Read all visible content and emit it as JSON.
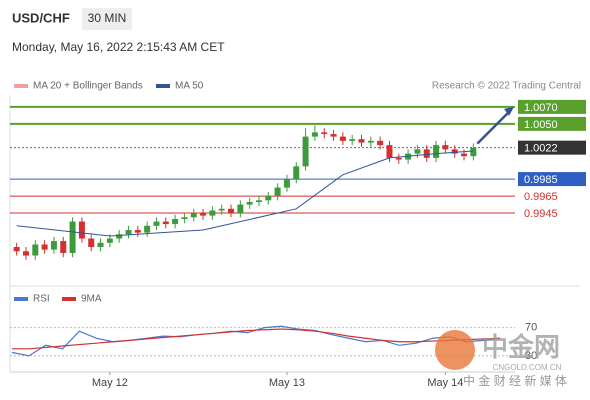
{
  "chart_data": {
    "type": "candlestick",
    "title": "USD/CHF",
    "timeframe": "30 MIN",
    "subtitle": "Monday, May 16, 2022 2:15:43 AM CET",
    "source": "Research © 2022 Trading Central",
    "legend": [
      "MA 20 + Bollinger Bands",
      "MA 50"
    ],
    "up_color": "#3d9b3d",
    "down_color": "#d3302f",
    "ylim": [
      0.9865,
      1.0084
    ],
    "open": [
      0.9905,
      0.99,
      0.9895,
      0.9908,
      0.9902,
      0.9912,
      0.9898,
      0.9935,
      0.9915,
      0.9905,
      0.991,
      0.9915,
      0.992,
      0.9925,
      0.9922,
      0.993,
      0.9935,
      0.9932,
      0.9938,
      0.994,
      0.9945,
      0.9942,
      0.9948,
      0.995,
      0.9945,
      0.9955,
      0.9958,
      0.996,
      0.9965,
      0.9975,
      0.9985,
      1.0,
      1.0035,
      1.004,
      1.0038,
      1.0035,
      1.003,
      1.0032,
      1.0028,
      1.003,
      1.0025,
      1.001,
      1.0008,
      1.0015,
      1.002,
      1.001,
      1.0025,
      1.002,
      1.0015,
      1.0012
    ],
    "high": [
      0.991,
      0.9905,
      0.9913,
      0.9913,
      0.9917,
      0.9917,
      0.994,
      0.994,
      0.992,
      0.9915,
      0.992,
      0.9925,
      0.993,
      0.993,
      0.9935,
      0.994,
      0.994,
      0.9943,
      0.9945,
      0.995,
      0.995,
      0.9953,
      0.9955,
      0.9955,
      0.996,
      0.9963,
      0.9965,
      0.997,
      0.998,
      0.999,
      1.0005,
      1.0045,
      1.0048,
      1.0045,
      1.0043,
      1.004,
      1.0037,
      1.0037,
      1.0035,
      1.0035,
      1.003,
      1.0015,
      1.002,
      1.0025,
      1.0025,
      1.003,
      1.003,
      1.0025,
      1.002,
      1.0027
    ],
    "low": [
      0.9895,
      0.989,
      0.989,
      0.9897,
      0.9897,
      0.9893,
      0.9893,
      0.991,
      0.99,
      0.99,
      0.9905,
      0.991,
      0.9915,
      0.9917,
      0.9917,
      0.9925,
      0.9927,
      0.9927,
      0.9933,
      0.9935,
      0.9937,
      0.9937,
      0.9943,
      0.994,
      0.994,
      0.995,
      0.9953,
      0.9955,
      0.996,
      0.997,
      0.998,
      0.9995,
      1.003,
      1.0033,
      1.003,
      1.0025,
      1.0025,
      1.0023,
      1.0023,
      1.002,
      1.0005,
      1.0003,
      1.0003,
      1.001,
      1.0005,
      1.0005,
      1.0015,
      1.001,
      1.0007,
      1.0007
    ],
    "close": [
      0.99,
      0.9895,
      0.9908,
      0.9902,
      0.9912,
      0.9898,
      0.9935,
      0.9915,
      0.9905,
      0.991,
      0.9915,
      0.992,
      0.9925,
      0.9922,
      0.993,
      0.9935,
      0.9932,
      0.9938,
      0.994,
      0.9945,
      0.9942,
      0.9948,
      0.995,
      0.9945,
      0.9955,
      0.9958,
      0.996,
      0.9965,
      0.9975,
      0.9985,
      1.0,
      1.0035,
      1.004,
      1.0038,
      1.0035,
      1.003,
      1.0032,
      1.0028,
      1.003,
      1.0025,
      1.001,
      1.0008,
      1.0015,
      1.002,
      1.001,
      1.0025,
      1.002,
      1.0015,
      1.0012,
      1.0022
    ],
    "ma50": {
      "color": "#2f5597",
      "x": [
        0,
        10,
        20,
        30,
        35,
        40,
        45,
        49
      ],
      "values": [
        0.993,
        0.9918,
        0.9925,
        0.995,
        0.999,
        1.001,
        1.0015,
        1.0018
      ]
    },
    "x_labels": [
      {
        "index": 10,
        "label": "May 12"
      },
      {
        "index": 29,
        "label": "May 13"
      },
      {
        "index": 46,
        "label": "May 14"
      }
    ],
    "levels": [
      {
        "value": 1.007,
        "label": "1.0070",
        "color": "#5aa02c",
        "kind": "resistance"
      },
      {
        "value": 1.005,
        "label": "1.0050",
        "color": "#5aa02c",
        "kind": "resistance"
      },
      {
        "value": 1.0022,
        "label": "1.0022",
        "color": "#333333",
        "kind": "current"
      },
      {
        "value": 0.9985,
        "label": "0.9985",
        "color": "#2f5fc4",
        "kind": "pivot"
      },
      {
        "value": 0.9965,
        "label": "0.9965",
        "color": "#d3302f",
        "kind": "support"
      },
      {
        "value": 0.9945,
        "label": "0.9945",
        "color": "#d3302f",
        "kind": "support"
      }
    ],
    "rsi": {
      "legend": [
        "RSI",
        "9MA"
      ],
      "ylim": [
        10,
        95
      ],
      "yticks": [
        70,
        30
      ],
      "rsi_color": "#4a78d0",
      "ma_color": "#d3302f",
      "values": [
        35,
        30,
        45,
        40,
        65,
        55,
        50,
        52,
        55,
        58,
        57,
        60,
        62,
        65,
        63,
        70,
        72,
        68,
        66,
        60,
        55,
        50,
        52,
        45,
        48,
        55,
        57,
        50,
        52,
        55
      ],
      "ma": [
        40,
        40,
        42,
        44,
        46,
        48,
        50,
        52,
        54,
        56,
        58,
        60,
        62,
        64,
        66,
        67,
        68,
        67,
        65,
        62,
        58,
        55,
        52,
        50,
        50,
        51,
        52,
        53,
        54,
        55
      ]
    },
    "watermark": {
      "name": "中金网",
      "site": "CNGOLD.COM.CN",
      "tagline": "中 金 财 经 新 媒 体"
    }
  }
}
